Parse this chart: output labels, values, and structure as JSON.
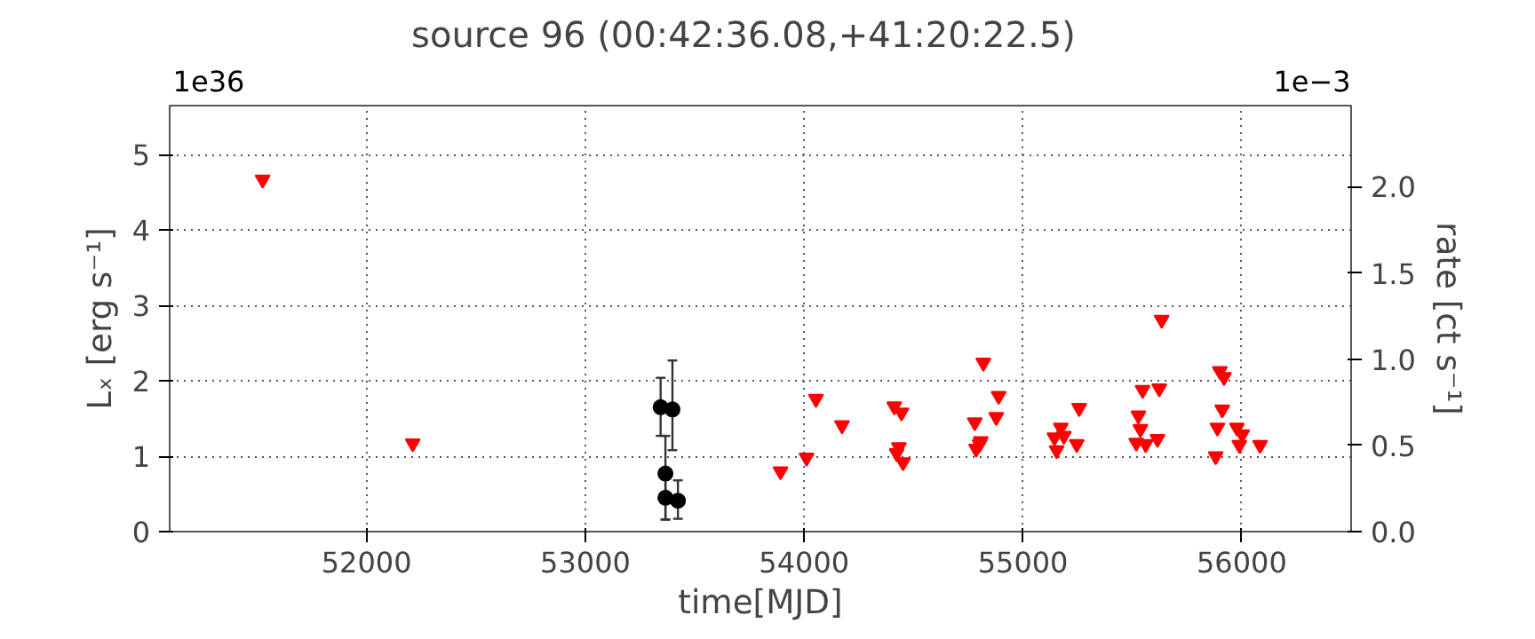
{
  "chart_data": {
    "type": "scatter",
    "title": "source 96    (00:42:36.08,+41:20:22.5)",
    "xlabel": "time[MJD]",
    "ylabel": "Lₓ [erg s⁻¹]",
    "y2label": "rate [ct s⁻¹]",
    "annotations": [
      "1e36",
      "1e−3"
    ],
    "xlim": [
      51100,
      56500
    ],
    "xticks": [
      52000,
      53000,
      54000,
      55000,
      56000
    ],
    "ylim": [
      0,
      5.65
    ],
    "yticks": [
      0,
      1,
      2,
      3,
      4,
      5
    ],
    "y2lim": [
      0,
      2.47
    ],
    "y2ticks": [
      {
        "value": 0,
        "label": "0.0"
      },
      {
        "value": 0.5,
        "label": "0.5"
      },
      {
        "value": 1,
        "label": "1.0"
      },
      {
        "value": 1.5,
        "label": "1.5"
      },
      {
        "value": 2,
        "label": "2.0"
      }
    ],
    "grid": true,
    "series": [
      {
        "color": "#ff0000",
        "marker": "triangle",
        "x": [
          51525,
          52211,
          53892,
          54011,
          54054,
          54173,
          54412,
          54445,
          54423,
          54433,
          54452,
          54819,
          54889,
          54878,
          54780,
          54807,
          54802,
          54786,
          55173,
          55144,
          55187,
          55154,
          55246,
          55257,
          55547,
          55528,
          55537,
          55518,
          55561,
          55623,
          55634,
          55615,
          55900,
          55919,
          55911,
          55889,
          55881,
          55978,
          56002,
          55989,
          56084
        ],
        "values": [
          4.67,
          1.17,
          0.8,
          0.98,
          1.76,
          1.41,
          1.66,
          1.58,
          1.04,
          1.12,
          0.92,
          2.24,
          1.8,
          1.52,
          1.45,
          1.2,
          1.16,
          1.1,
          1.38,
          1.25,
          1.27,
          1.08,
          1.16,
          1.64,
          1.88,
          1.54,
          1.36,
          1.18,
          1.16,
          1.9,
          2.81,
          1.23,
          2.13,
          2.05,
          1.62,
          1.38,
          1.0,
          1.38,
          1.29,
          1.15,
          1.15
        ]
      },
      {
        "color": "#000000",
        "marker": "circle",
        "x": [
          53344,
          53398,
          53366,
          53366,
          53423
        ],
        "values": [
          1.65,
          1.62,
          0.77,
          0.45,
          0.41
        ],
        "errors": [
          [
            1.27,
            2.04
          ],
          [
            1.08,
            2.27
          ],
          [
            0.16,
            1.27
          ],
          [
            0.16,
            0.75
          ],
          [
            0.17,
            0.68
          ]
        ]
      }
    ]
  }
}
